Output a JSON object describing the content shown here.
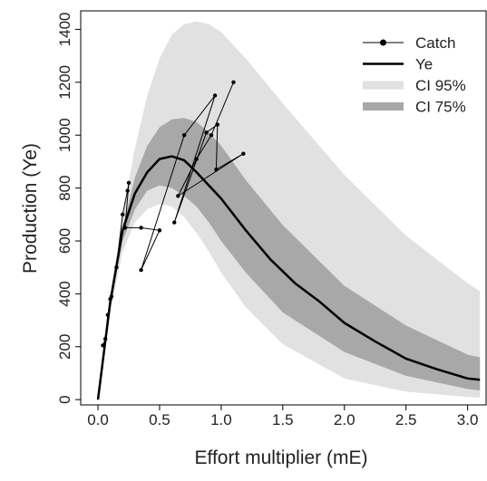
{
  "chart_data": {
    "type": "line",
    "xlabel": "Effort multiplier (mE)",
    "ylabel": "Production (Ye)",
    "xlim": [
      -0.14,
      3.15
    ],
    "ylim": [
      -20,
      1470
    ],
    "xticks": [
      {
        "value": 0,
        "label": "0.0"
      },
      0.5,
      {
        "value": 1,
        "label": "1.0"
      },
      1.5,
      {
        "value": 2,
        "label": "2.0"
      },
      2.5,
      {
        "value": 3,
        "label": "3.0"
      }
    ],
    "yticks": [
      0,
      200,
      400,
      600,
      800,
      1000,
      1200,
      1400
    ],
    "legend": "top right",
    "bands": [
      {
        "name": "CI 95%",
        "color": "#e1e1e1",
        "x": [
          0,
          0.1,
          0.2,
          0.3,
          0.4,
          0.5,
          0.6,
          0.7,
          0.8,
          0.9,
          1.0,
          1.2,
          1.5,
          2.0,
          2.5,
          3.0,
          3.1
        ],
        "upper": [
          0,
          380,
          700,
          950,
          1150,
          1290,
          1380,
          1420,
          1430,
          1420,
          1390,
          1290,
          1120,
          850,
          620,
          440,
          410
        ],
        "lower": [
          0,
          330,
          560,
          670,
          720,
          740,
          730,
          690,
          630,
          560,
          480,
          350,
          210,
          80,
          30,
          10,
          8
        ]
      },
      {
        "name": "CI 75%",
        "color": "#a8a8a8",
        "x": [
          0,
          0.1,
          0.2,
          0.3,
          0.4,
          0.5,
          0.6,
          0.7,
          0.8,
          0.9,
          1.0,
          1.2,
          1.5,
          2.0,
          2.5,
          3.0,
          3.1
        ],
        "upper": [
          0,
          360,
          650,
          840,
          960,
          1030,
          1060,
          1065,
          1050,
          1010,
          960,
          830,
          660,
          430,
          280,
          170,
          160
        ],
        "lower": [
          0,
          345,
          600,
          720,
          790,
          810,
          800,
          770,
          730,
          670,
          600,
          480,
          330,
          180,
          90,
          40,
          35
        ]
      }
    ],
    "series": [
      {
        "name": "Catch",
        "color": "#000000",
        "markers": true,
        "width": 1,
        "x": [
          0.04,
          0.06,
          0.08,
          0.1,
          0.11,
          0.15,
          0.2,
          0.24,
          0.25,
          0.22,
          0.35,
          0.5,
          0.35,
          0.7,
          0.95,
          0.62,
          0.88,
          0.97,
          0.96,
          1.18,
          0.65,
          0.8,
          0.92,
          1.1
        ],
        "values": [
          205,
          230,
          320,
          380,
          390,
          500,
          700,
          790,
          820,
          650,
          650,
          640,
          490,
          1000,
          1150,
          670,
          1010,
          1040,
          870,
          930,
          770,
          910,
          1000,
          1200
        ]
      },
      {
        "name": "Ye",
        "color": "#000000",
        "markers": false,
        "width": 2.5,
        "x": [
          0,
          0.1,
          0.2,
          0.3,
          0.4,
          0.5,
          0.6,
          0.7,
          0.8,
          1.0,
          1.2,
          1.4,
          1.6,
          1.8,
          2.0,
          2.25,
          2.5,
          2.75,
          3.0,
          3.1
        ],
        "values": [
          0,
          370,
          640,
          780,
          860,
          910,
          920,
          905,
          860,
          760,
          640,
          530,
          440,
          370,
          290,
          220,
          155,
          115,
          80,
          75
        ]
      }
    ]
  }
}
